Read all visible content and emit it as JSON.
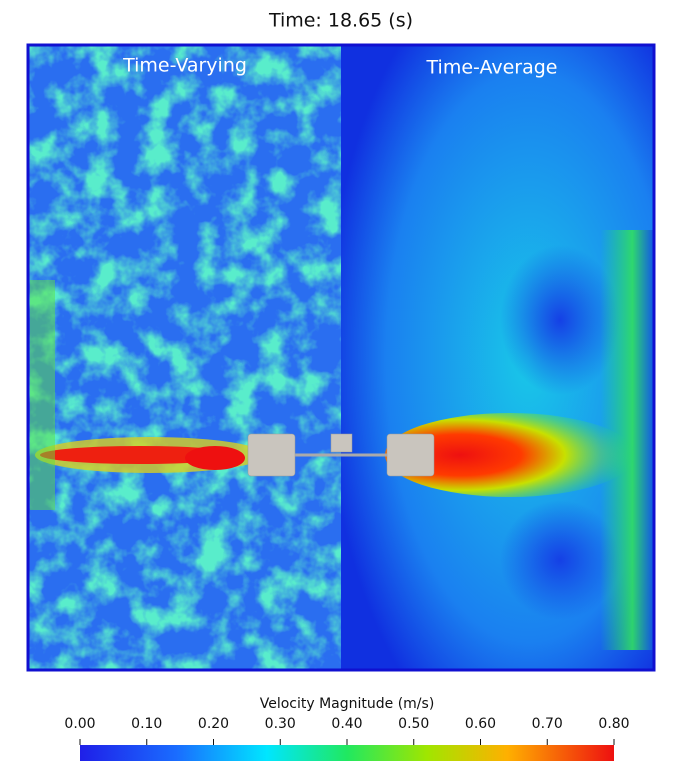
{
  "title": "Time: 18.65 (s)",
  "panels": [
    {
      "label": "Time-Varying"
    },
    {
      "label": "Time-Average"
    }
  ],
  "colorbar": {
    "label": "Velocity Magnitude (m/s)",
    "range": [
      0,
      0.8
    ],
    "ticks": [
      {
        "value": 0,
        "label": "0.00"
      },
      {
        "value": 0.1,
        "label": "0.10"
      },
      {
        "value": 0.2,
        "label": "0.20"
      },
      {
        "value": 0.3,
        "label": "0.30"
      },
      {
        "value": 0.4,
        "label": "0.40"
      },
      {
        "value": 0.5,
        "label": "0.50"
      },
      {
        "value": 0.6,
        "label": "0.60"
      },
      {
        "value": 0.7,
        "label": "0.70"
      },
      {
        "value": 0.8,
        "label": "0.80"
      }
    ]
  }
}
